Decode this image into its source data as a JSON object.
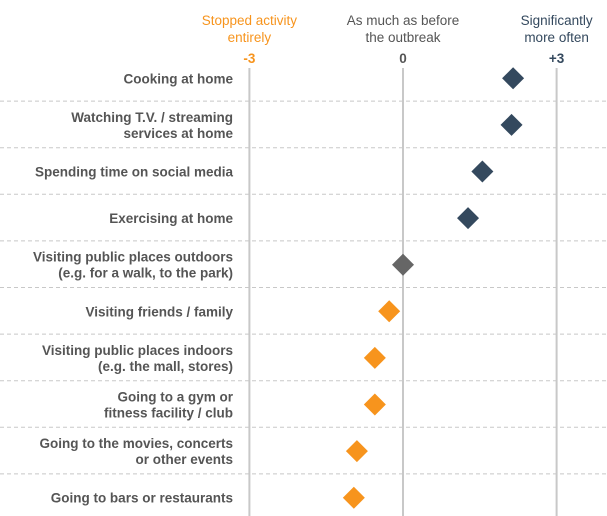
{
  "chart_data": {
    "type": "scatter",
    "title": "",
    "xlabel": "",
    "ylabel": "",
    "xlim": [
      -3,
      3
    ],
    "grid": "vertical lines at -3, 0, +3; dashed row separators",
    "legend": "none",
    "scale_headers": [
      {
        "value": -3,
        "lines": [
          "Stopped activity",
          "entirely"
        ],
        "tick_label": "-3",
        "color": "#F7941D"
      },
      {
        "value": 0,
        "lines": [
          "As much as before",
          "the outbreak"
        ],
        "tick_label": "0",
        "color": "#555555"
      },
      {
        "value": 3,
        "lines": [
          "Significantly",
          "more often"
        ],
        "tick_label": "+3",
        "color": "#34495E"
      }
    ],
    "categories": [
      [
        "Cooking at home"
      ],
      [
        "Watching T.V. / streaming",
        "services at home"
      ],
      [
        "Spending time on social media"
      ],
      [
        "Exercising at home"
      ],
      [
        "Visiting public places outdoors",
        "(e.g. for a walk, to the park)"
      ],
      [
        "Visiting friends / family"
      ],
      [
        "Visiting public places indoors",
        "(e.g. the mall, stores)"
      ],
      [
        "Going to a gym or",
        "fitness facility / club"
      ],
      [
        "Going to the movies, concerts",
        "or other events"
      ],
      [
        "Going to bars or restaurants"
      ]
    ],
    "values": [
      2.15,
      2.12,
      1.55,
      1.27,
      0.0,
      -0.27,
      -0.55,
      -0.55,
      -0.9,
      -0.96
    ],
    "colors": {
      "positive": "#34495E",
      "neutral": "#666666",
      "negative": "#F7941D",
      "gridline": "#C8C8C8",
      "separator": "#C8C8C8",
      "label": "#555555"
    }
  }
}
